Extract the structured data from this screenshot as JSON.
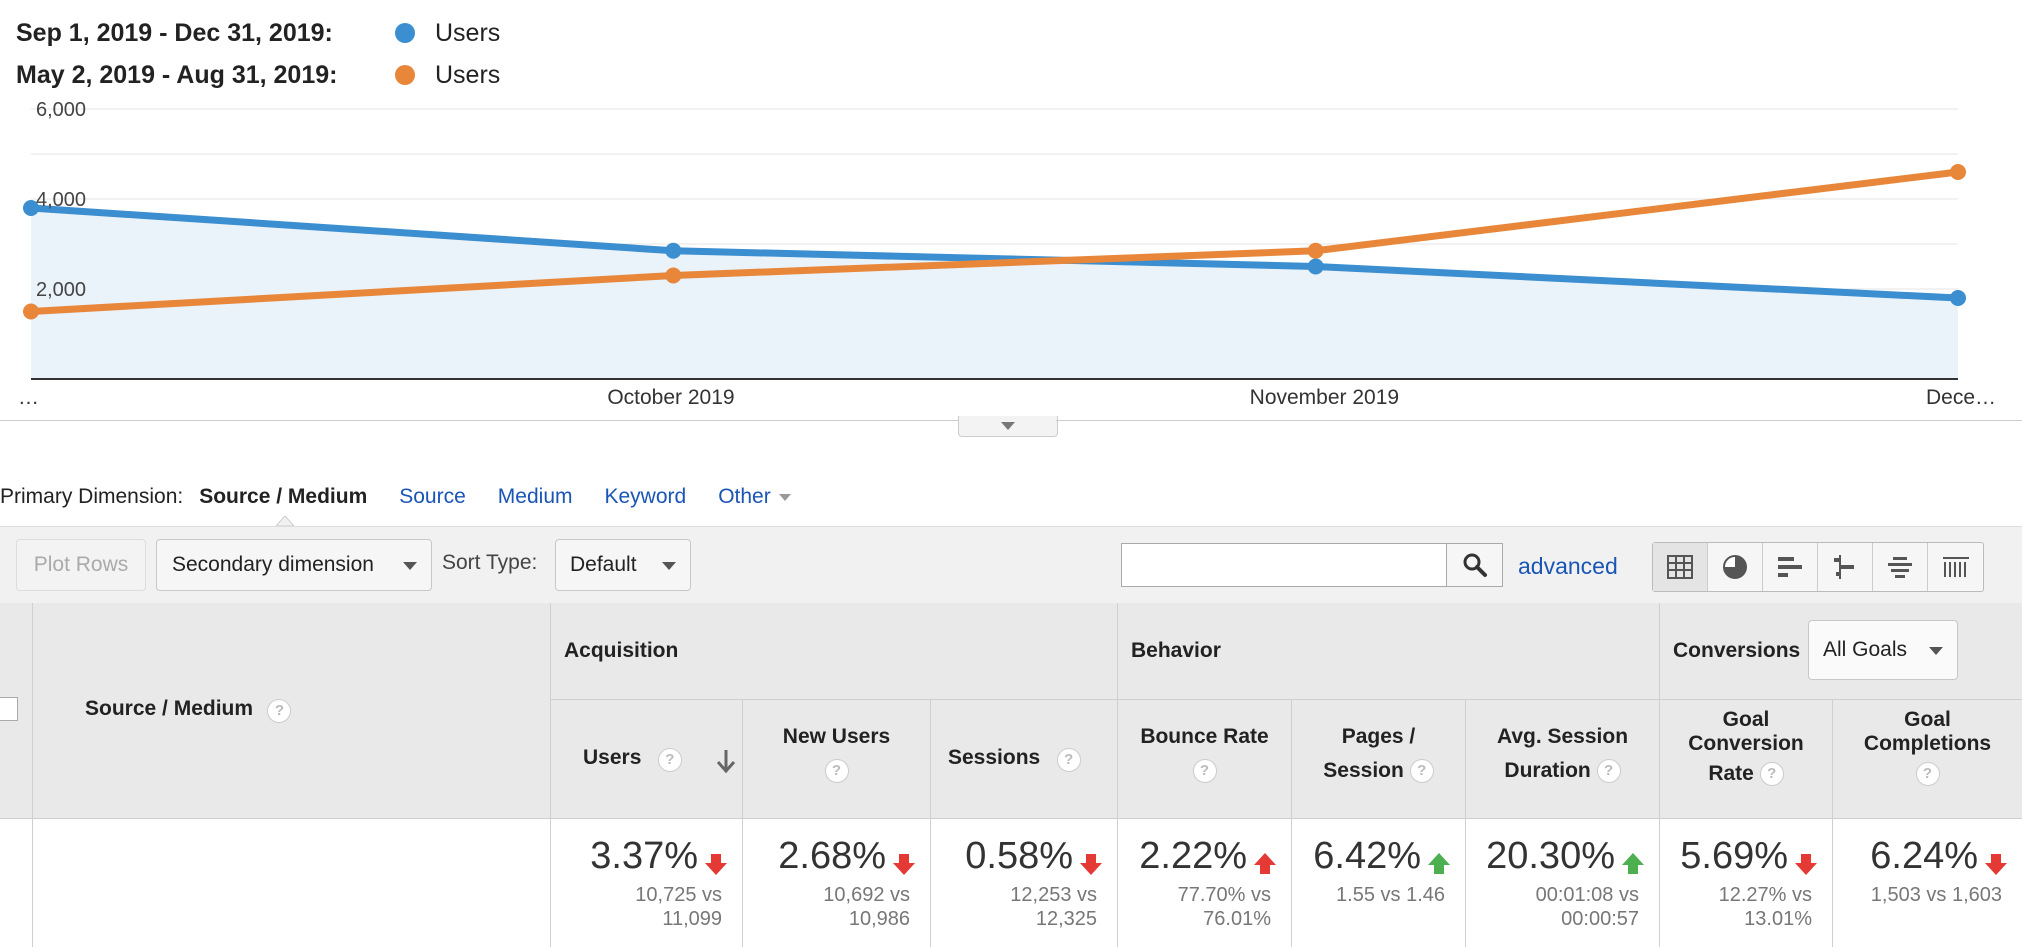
{
  "legend": [
    {
      "range": "Sep 1, 2019 - Dec 31, 2019:",
      "metric": "Users",
      "color": "#3b8ed0"
    },
    {
      "range": "May 2, 2019 - Aug 31, 2019:",
      "metric": "Users",
      "color": "#e8873a"
    }
  ],
  "chart_data": {
    "type": "line",
    "x": [
      "…",
      "October 2019",
      "November 2019",
      "Dece…"
    ],
    "yticks": [
      "2,000",
      "4,000",
      "6,000"
    ],
    "ylim": [
      0,
      6000
    ],
    "series": [
      {
        "name": "Sep 1, 2019 - Dec 31, 2019: Users",
        "color": "#3b8ed0",
        "values": [
          3800,
          2850,
          2500,
          1800
        ],
        "area": true
      },
      {
        "name": "May 2, 2019 - Aug 31, 2019: Users",
        "color": "#e8873a",
        "values": [
          1500,
          2300,
          2850,
          4600
        ],
        "area": false
      }
    ]
  },
  "primary_dimension": {
    "label": "Primary Dimension:",
    "active": "Source / Medium",
    "links": [
      "Source",
      "Medium",
      "Keyword"
    ],
    "other": "Other"
  },
  "toolbar": {
    "plot_rows": "Plot Rows",
    "secondary_dimension": "Secondary dimension",
    "sort_type_label": "Sort Type:",
    "sort_type_value": "Default",
    "search_placeholder": "",
    "advanced": "advanced"
  },
  "table": {
    "dimension_header": "Source / Medium",
    "groups": {
      "acquisition": "Acquisition",
      "behavior": "Behavior",
      "conversions": "Conversions",
      "conversions_select": "All Goals"
    },
    "columns": [
      {
        "line1": "Users",
        "line2": "",
        "pct": "3.37%",
        "dir": "down",
        "good": false,
        "cmp1": "10,725 vs",
        "cmp2": "11,099"
      },
      {
        "line1": "New Users",
        "line2": "",
        "pct": "2.68%",
        "dir": "down",
        "good": false,
        "cmp1": "10,692 vs",
        "cmp2": "10,986"
      },
      {
        "line1": "Sessions",
        "line2": "",
        "pct": "0.58%",
        "dir": "down",
        "good": false,
        "cmp1": "12,253 vs",
        "cmp2": "12,325"
      },
      {
        "line1": "Bounce Rate",
        "line2": "",
        "pct": "2.22%",
        "dir": "up",
        "good": false,
        "cmp1": "77.70% vs",
        "cmp2": "76.01%"
      },
      {
        "line1": "Pages /",
        "line2": "Session",
        "pct": "6.42%",
        "dir": "up",
        "good": true,
        "cmp1": "1.55 vs 1.46",
        "cmp2": ""
      },
      {
        "line1": "Avg. Session",
        "line2": "Duration",
        "pct": "20.30%",
        "dir": "up",
        "good": true,
        "cmp1": "00:01:08 vs",
        "cmp2": "00:00:57"
      },
      {
        "line1": "Goal",
        "line2": "Conversion",
        "line3": "Rate",
        "pct": "5.69%",
        "dir": "down",
        "good": false,
        "cmp1": "12.27% vs",
        "cmp2": "13.01%"
      },
      {
        "line1": "Goal",
        "line2": "Completions",
        "pct": "6.24%",
        "dir": "down",
        "good": false,
        "cmp1": "1,503 vs 1,603",
        "cmp2": ""
      }
    ]
  },
  "colors": {
    "link": "#1a55b5",
    "down": "#e53935",
    "up_good": "#4caf50",
    "up_bad": "#e53935"
  }
}
